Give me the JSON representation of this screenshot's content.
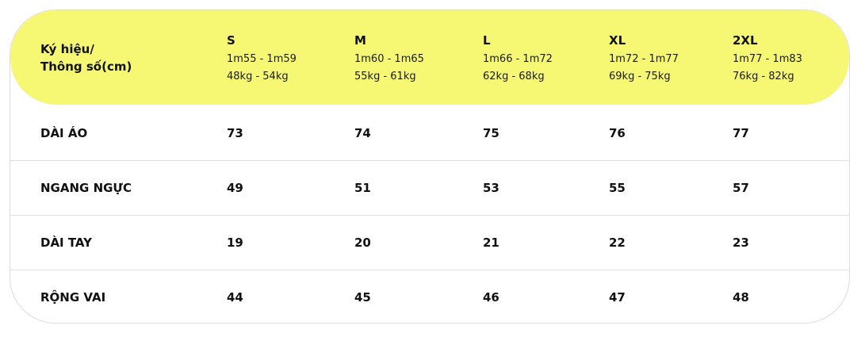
{
  "table": {
    "corner_label_line1": "Ký hiệu/",
    "corner_label_line2": "Thông số(cm)",
    "sizes": [
      {
        "name": "S",
        "height": "1m55 - 1m59",
        "weight": "48kg - 54kg"
      },
      {
        "name": "M",
        "height": "1m60 - 1m65",
        "weight": "55kg - 61kg"
      },
      {
        "name": "L",
        "height": "1m66 - 1m72",
        "weight": "62kg - 68kg"
      },
      {
        "name": "XL",
        "height": "1m72 - 1m77",
        "weight": "69kg - 75kg"
      },
      {
        "name": "2XL",
        "height": "1m77 - 1m83",
        "weight": "76kg - 82kg"
      }
    ],
    "rows": [
      {
        "label": "DÀI ÁO",
        "values": [
          "73",
          "74",
          "75",
          "76",
          "77"
        ]
      },
      {
        "label": "NGANG NGỰC",
        "values": [
          "49",
          "51",
          "53",
          "55",
          "57"
        ]
      },
      {
        "label": "DÀI TAY",
        "values": [
          "19",
          "20",
          "21",
          "22",
          "23"
        ]
      },
      {
        "label": "RỘNG VAI",
        "values": [
          "44",
          "45",
          "46",
          "47",
          "48"
        ]
      }
    ],
    "colors": {
      "header_bg": "#f6f874",
      "border": "#dcdcdc",
      "text": "#111111"
    }
  }
}
